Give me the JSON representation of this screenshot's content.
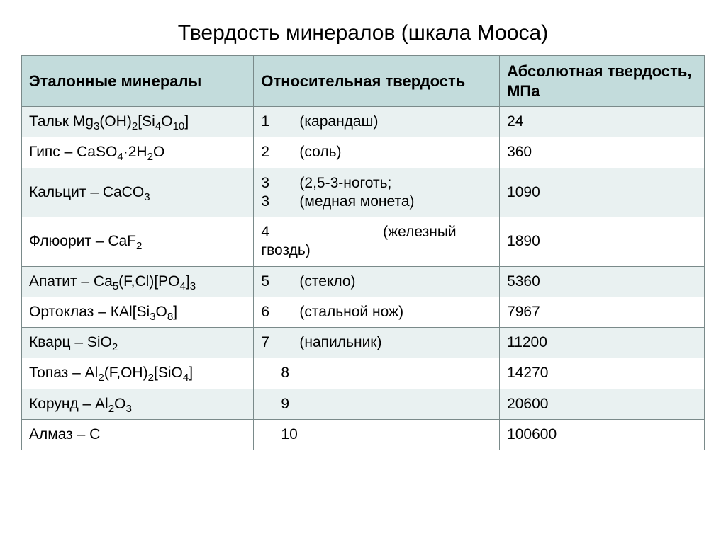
{
  "title": "Твердость минералов (шкала Мооса)",
  "colors": {
    "header_bg": "#c3dcdc",
    "row_odd_bg": "#e9f1f1",
    "row_even_bg": "#ffffff",
    "border": "#7a8a8a",
    "text": "#000000"
  },
  "typography": {
    "title_fontsize_pt": 22,
    "cell_fontsize_pt": 16,
    "header_fontsize_pt": 16,
    "font_family": "Arial"
  },
  "table": {
    "type": "table",
    "columns": [
      {
        "label": "Эталонные минералы",
        "width_pct": 34,
        "align": "left"
      },
      {
        "label": "Относительная твердость",
        "width_pct": 36,
        "align": "left"
      },
      {
        "label": "Абсолютная твердость, МПа",
        "width_pct": 30,
        "align": "left"
      }
    ],
    "rows": [
      {
        "mineral_plain": "Тальк Mg3(OH)2[Si4O10]",
        "mineral_html": "Тальк Mg<sub>3</sub>(OH)<sub>2</sub>[Si<sub>4</sub>O<sub>10</sub>]",
        "relative_num": "1",
        "relative_note": "(карандаш)",
        "absolute": "24"
      },
      {
        "mineral_plain": "Гипс – CaSO4·2H2O",
        "mineral_html": "Гипс – CaSO<sub>4</sub>·2H<sub>2</sub>O",
        "relative_num": "2",
        "relative_note": "(соль)",
        "absolute": "360"
      },
      {
        "mineral_plain": "Кальцит – CaCO3",
        "mineral_html": "Кальцит – CaCO<sub>3</sub>",
        "relative_num_line1": "3",
        "relative_note_line1": "(2,5-3-ноготь;",
        "relative_num_line2": "3",
        "relative_note_line2": "(медная монета)",
        "absolute": "1090"
      },
      {
        "mineral_plain": "Флюорит – CaF2",
        "mineral_html": "Флюорит – CaF<sub>2</sub>",
        "relative_num": "4",
        "relative_note": "(железный гвоздь)",
        "relative_note_wide": true,
        "absolute": "1890"
      },
      {
        "mineral_plain": "Апатит – Ca5(F,Cl)[PO4]3",
        "mineral_html": "Апатит – Ca<sub>5</sub>(F,Cl)[PO<sub>4</sub>]<sub>3</sub>",
        "relative_num": "5",
        "relative_note": "(стекло)",
        "absolute": "5360"
      },
      {
        "mineral_plain": "Ортоклаз – КAl[Si3O8]",
        "mineral_html": "Ортоклаз – КAl[Si<sub>3</sub>O<sub>8</sub>]",
        "relative_num": "6",
        "relative_note": "(стальной нож)",
        "absolute": "7967"
      },
      {
        "mineral_plain": "Кварц – SiO2",
        "mineral_html": "Кварц – SiO<sub>2</sub>",
        "relative_num": "7",
        "relative_note": "(напильник)",
        "absolute": "11200"
      },
      {
        "mineral_plain": "Топаз – Al2(F,OH)2[SiO4]",
        "mineral_html": "Топаз – Al<sub>2</sub>(F,OH)<sub>2</sub>[SiO<sub>4</sub>]",
        "relative_num": "8",
        "relative_note": "",
        "indent": true,
        "absolute": "14270"
      },
      {
        "mineral_plain": "Корунд – Al2O3",
        "mineral_html": "Корунд – Al<sub>2</sub>O<sub>3</sub>",
        "relative_num": "9",
        "relative_note": "",
        "indent": true,
        "absolute": "20600"
      },
      {
        "mineral_plain": "Алмаз – C",
        "mineral_html": "Алмаз – С",
        "relative_num": "10",
        "relative_note": "",
        "indent": true,
        "absolute": "100600"
      }
    ]
  }
}
